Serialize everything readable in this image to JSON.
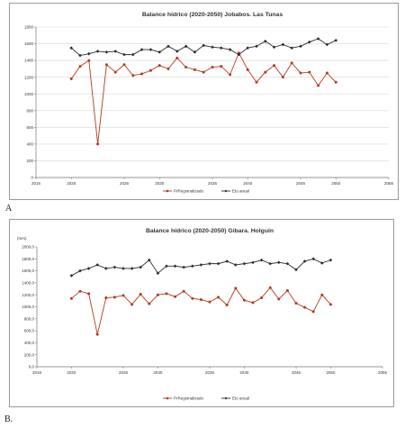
{
  "figure": {
    "panel_labels": [
      "A",
      "B."
    ]
  },
  "chart_data": [
    {
      "type": "line",
      "title": "Balance hídrico (2020-2050) Jobabos. Las Tunas",
      "ylabel": "",
      "xlabel": "",
      "xlim": [
        2016,
        2056
      ],
      "ylim": [
        0,
        1800
      ],
      "x_ticks": [
        2016,
        2020,
        2026,
        2030,
        2036,
        2040,
        2046,
        2050,
        2056
      ],
      "y_ticks": [
        0,
        200,
        400,
        600,
        800,
        1000,
        1200,
        1400,
        1600,
        1800
      ],
      "grid": true,
      "legend_position": "bottom-center",
      "x": [
        2020,
        2021,
        2022,
        2023,
        2024,
        2025,
        2026,
        2027,
        2028,
        2029,
        2030,
        2031,
        2032,
        2033,
        2034,
        2035,
        2036,
        2037,
        2038,
        2039,
        2040,
        2041,
        2042,
        2043,
        2044,
        2045,
        2046,
        2047,
        2048,
        2049,
        2050
      ],
      "series": [
        {
          "name": "PrRegionalizado",
          "color": "#b23a1e",
          "marker": "circle",
          "values": [
            1180,
            1330,
            1400,
            400,
            1350,
            1260,
            1350,
            1220,
            1240,
            1280,
            1340,
            1300,
            1430,
            1320,
            1290,
            1260,
            1320,
            1330,
            1230,
            1490,
            1290,
            1140,
            1260,
            1340,
            1200,
            1370,
            1250,
            1260,
            1100,
            1250,
            1140
          ]
        },
        {
          "name": "Eto anual",
          "color": "#2b2b2b",
          "marker": "diamond",
          "values": [
            1550,
            1460,
            1480,
            1510,
            1500,
            1510,
            1470,
            1470,
            1530,
            1530,
            1500,
            1570,
            1510,
            1570,
            1500,
            1580,
            1560,
            1550,
            1530,
            1470,
            1550,
            1570,
            1630,
            1560,
            1590,
            1550,
            1570,
            1620,
            1660,
            1590,
            1640
          ]
        }
      ]
    },
    {
      "type": "line",
      "title": "Balance hídrico (2020-2050) Gibara. Holguín",
      "ylabel": "(mm)",
      "xlabel": "",
      "xlim": [
        2016,
        2056
      ],
      "ylim": [
        0,
        2000
      ],
      "x_ticks": [
        2016,
        2020,
        2026,
        2030,
        2036,
        2040,
        2046,
        2050,
        2056
      ],
      "y_ticks": [
        "0,0",
        "200,0",
        "400,0",
        "600,0",
        "800,0",
        "1000,0",
        "1200,0",
        "1400,0",
        "1600,0",
        "1800,0",
        "2000,0"
      ],
      "grid": false,
      "legend_position": "bottom-center",
      "x": [
        2020,
        2021,
        2022,
        2023,
        2024,
        2025,
        2026,
        2027,
        2028,
        2029,
        2030,
        2031,
        2032,
        2033,
        2034,
        2035,
        2036,
        2037,
        2038,
        2039,
        2040,
        2041,
        2042,
        2043,
        2044,
        2045,
        2046,
        2047,
        2048,
        2049,
        2050
      ],
      "series": [
        {
          "name": "PrRegionalizado",
          "color": "#b23a1e",
          "marker": "circle",
          "values": [
            1140,
            1260,
            1220,
            540,
            1150,
            1160,
            1190,
            1040,
            1210,
            1050,
            1200,
            1220,
            1170,
            1260,
            1140,
            1120,
            1080,
            1160,
            1030,
            1310,
            1110,
            1070,
            1150,
            1320,
            1130,
            1270,
            1060,
            990,
            920,
            1200,
            1040
          ]
        },
        {
          "name": "Eto anual",
          "color": "#2b2b2b",
          "marker": "diamond",
          "values": [
            1520,
            1600,
            1640,
            1700,
            1640,
            1660,
            1640,
            1640,
            1660,
            1780,
            1560,
            1680,
            1680,
            1660,
            1680,
            1700,
            1720,
            1720,
            1760,
            1700,
            1720,
            1740,
            1780,
            1720,
            1740,
            1720,
            1620,
            1760,
            1800,
            1730,
            1780
          ]
        }
      ]
    }
  ]
}
